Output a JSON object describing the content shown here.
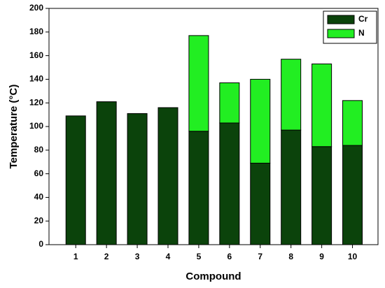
{
  "chart_data": {
    "type": "stacked_bar",
    "x_label": "Compound",
    "y_label": "Temperature (°C)",
    "categories": [
      "1",
      "2",
      "3",
      "4",
      "5",
      "6",
      "7",
      "8",
      "9",
      "10"
    ],
    "series": [
      {
        "name": "Cr",
        "color": "#0b430b",
        "values": [
          109,
          121,
          111,
          116,
          96,
          103,
          69,
          97,
          83,
          84
        ]
      },
      {
        "name": "N",
        "color": "#22ee22",
        "values": [
          null,
          null,
          null,
          null,
          81,
          34,
          71,
          60,
          70,
          38
        ]
      }
    ],
    "ylim": [
      0,
      200
    ],
    "yticks": [
      0,
      20,
      40,
      60,
      80,
      100,
      120,
      140,
      160,
      180,
      200
    ],
    "legend": "upper right"
  }
}
